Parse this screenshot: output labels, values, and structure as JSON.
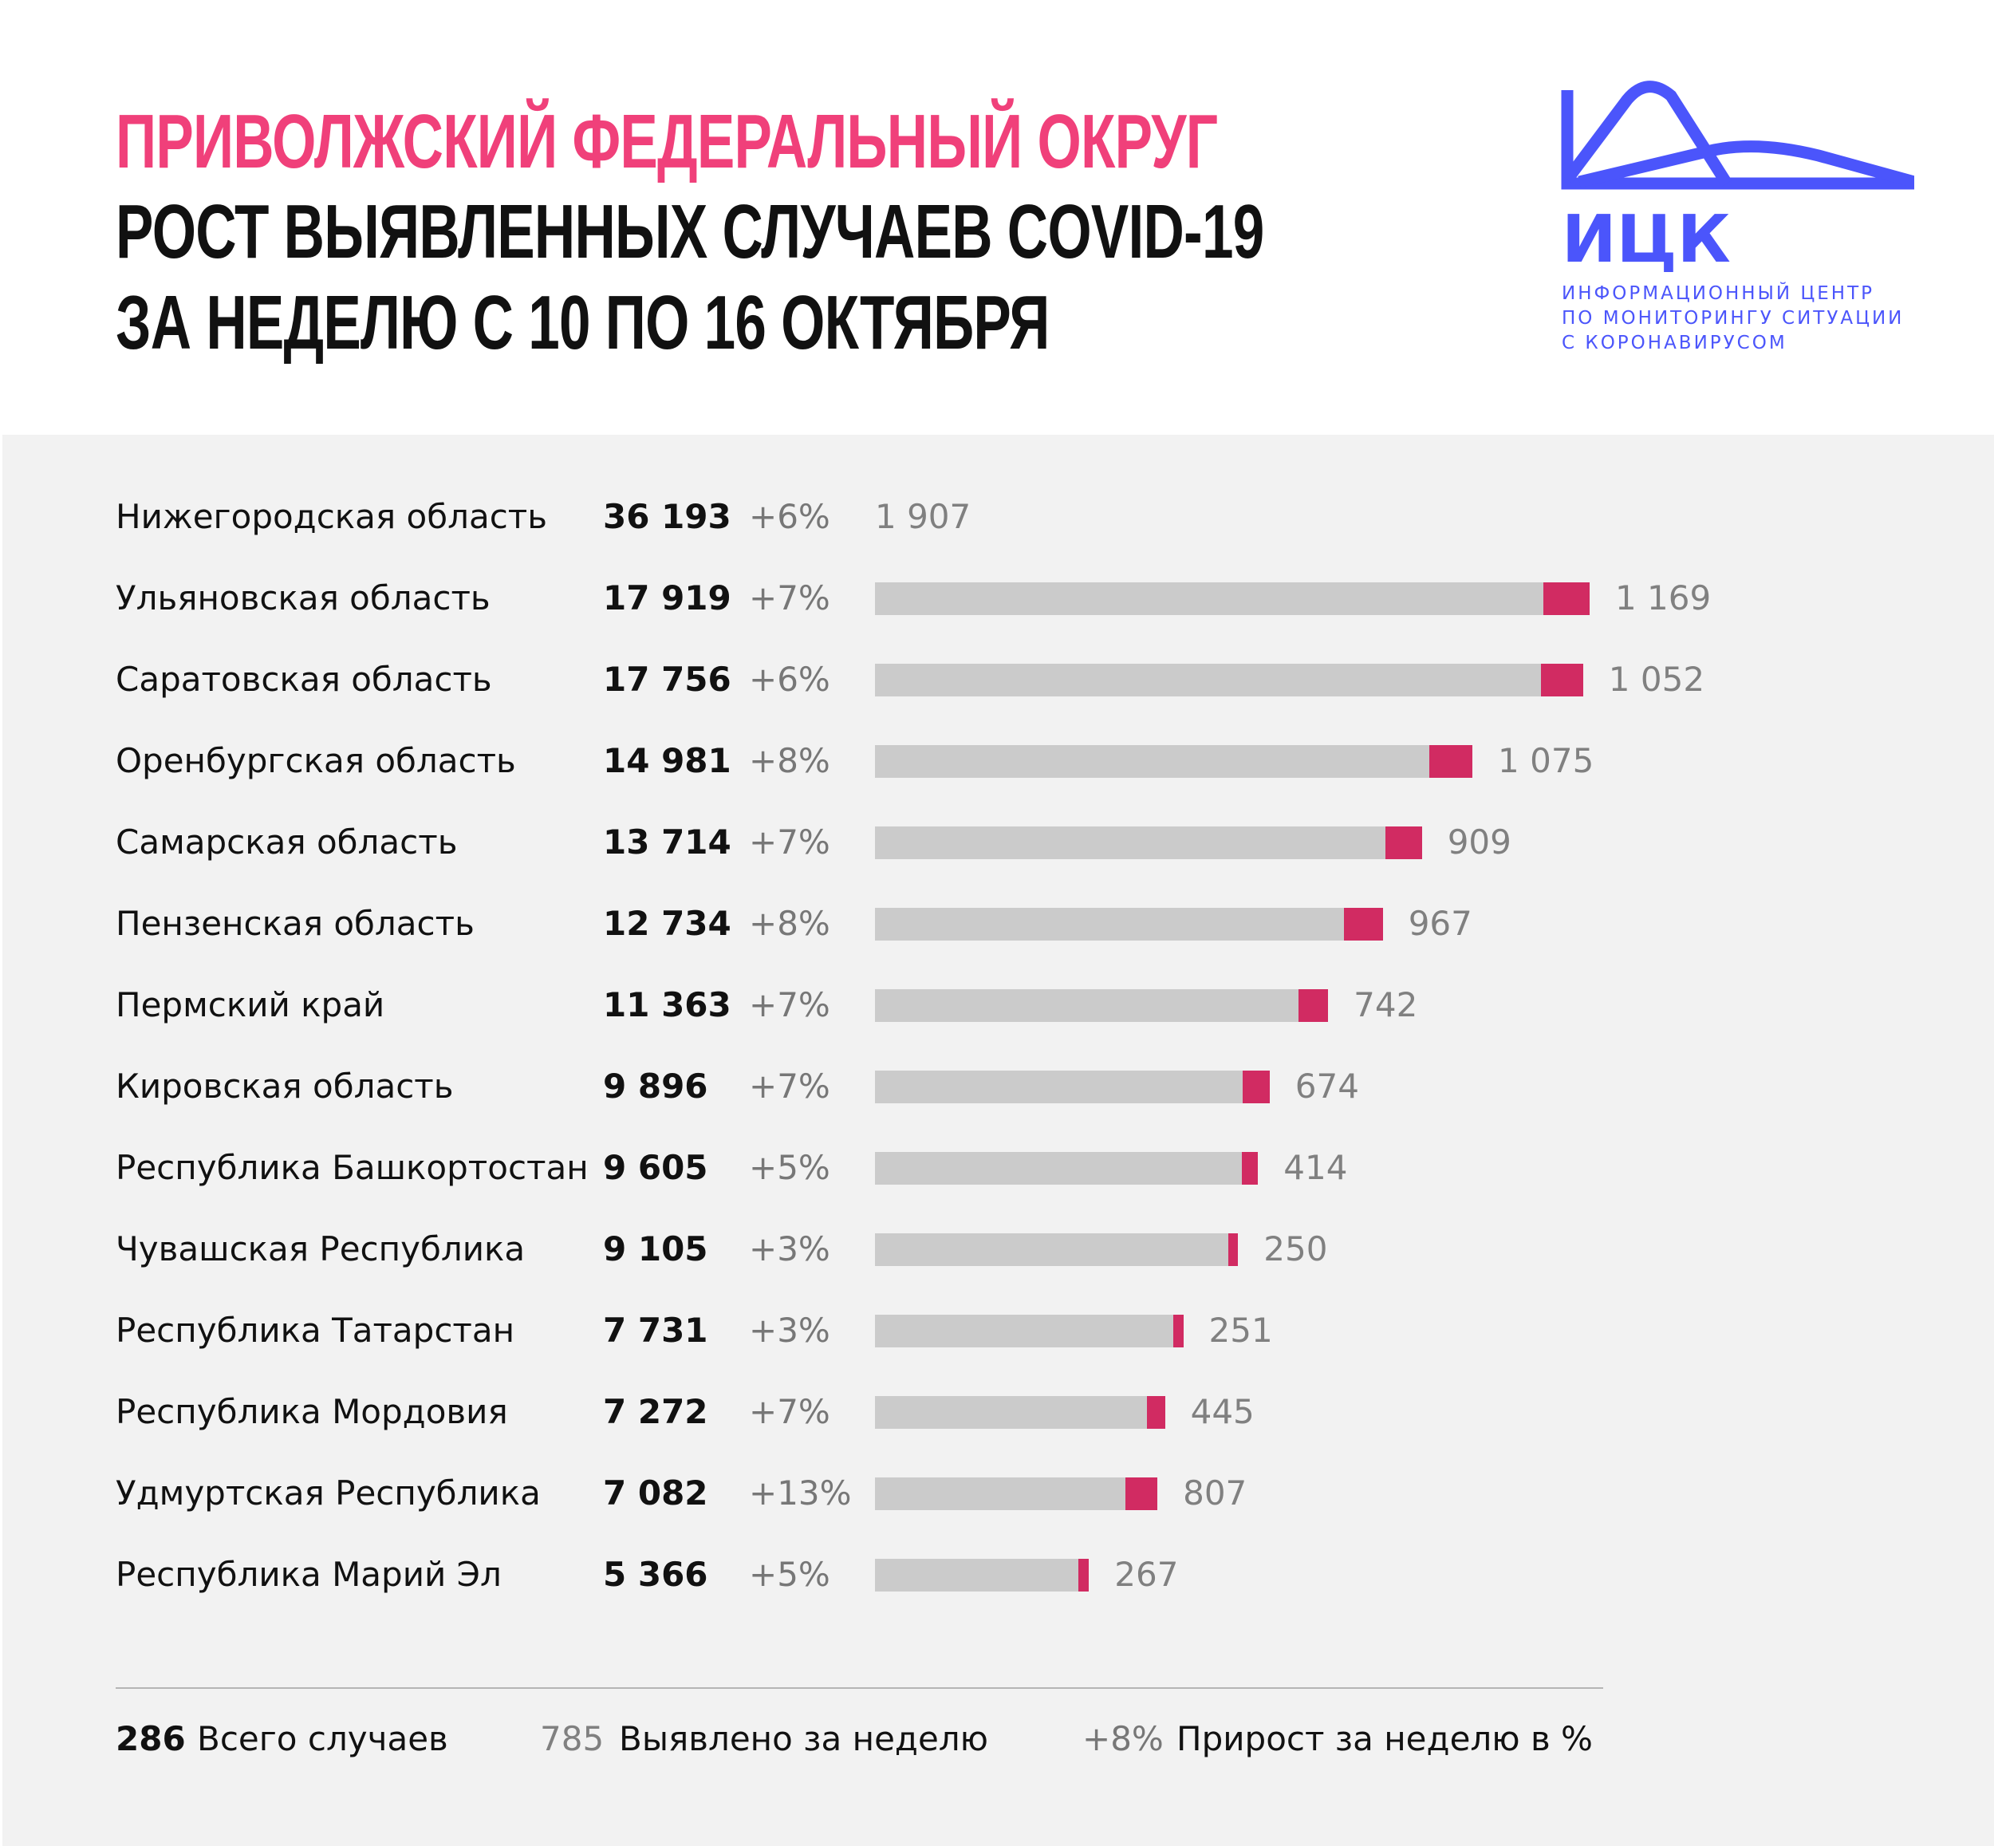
{
  "header": {
    "title_line1": "ПРИВОЛЖСКИЙ ФЕДЕРАЛЬНЫЙ ОКРУГ",
    "title_line2": "РОСТ ВЫЯВЛЕННЫХ СЛУЧАЕВ COVID-19",
    "title_line3": "ЗА НЕДЕЛЮ С 10 ПО 16 ОКТЯБРЯ"
  },
  "logo": {
    "abbr": "ИЦК",
    "line1": "ИНФОРМАЦИОННЫЙ ЦЕНТР",
    "line2": "ПО МОНИТОРИНГУ СИТУАЦИИ",
    "line3": "С КОРОНАВИРУСОМ",
    "color": "#4b55fb"
  },
  "colors": {
    "title_accent": "#f0407a",
    "bar_total": "#cbcbcb",
    "bar_week": "#d12b62",
    "background": "#f2f2f2"
  },
  "chart_data": {
    "type": "bar",
    "orientation": "horizontal",
    "stacked": true,
    "categories": [
      "Нижегородская область",
      "Ульяновская область",
      "Саратовская область",
      "Оренбургская область",
      "Самарская область",
      "Пензенская область",
      "Пермский край",
      "Кировская область",
      "Республика Башкортостан",
      "Чувашская Республика",
      "Республика Татарстан",
      "Республика Мордовия",
      "Удмуртская Республика",
      "Республика Марий Эл"
    ],
    "total_labels": [
      "36 193",
      "17 919",
      "17 756",
      "14 981",
      "13 714",
      "12 734",
      "11 363",
      "9 896",
      "9 605",
      "9 105",
      "7 731",
      "7 272",
      "7 082",
      "5 366"
    ],
    "totals": [
      36193,
      17919,
      17756,
      14981,
      13714,
      12734,
      11363,
      9896,
      9605,
      9105,
      7731,
      7272,
      7082,
      5366
    ],
    "growth_labels": [
      "+6%",
      "+7%",
      "+6%",
      "+8%",
      "+7%",
      "+8%",
      "+7%",
      "+7%",
      "+5%",
      "+3%",
      "+3%",
      "+7%",
      "+13%",
      "+5%"
    ],
    "weekly_labels": [
      "1 907",
      "1 169",
      "1 052",
      "1 075",
      "909",
      "967",
      "742",
      "674",
      "414",
      "250",
      "251",
      "445",
      "807",
      "267"
    ],
    "weekly": [
      1907,
      1169,
      1052,
      1075,
      909,
      967,
      742,
      674,
      414,
      250,
      251,
      445,
      807,
      267
    ],
    "bar_shown": [
      false,
      true,
      true,
      true,
      true,
      true,
      true,
      true,
      true,
      true,
      true,
      true,
      true,
      true
    ],
    "grid": false
  },
  "legend": {
    "total_value": "286",
    "total_label": "Всего случаев",
    "week_value": "785",
    "week_label": "Выявлено за неделю",
    "growth_value": "+8%",
    "growth_label": "Прирост за неделю в %"
  }
}
